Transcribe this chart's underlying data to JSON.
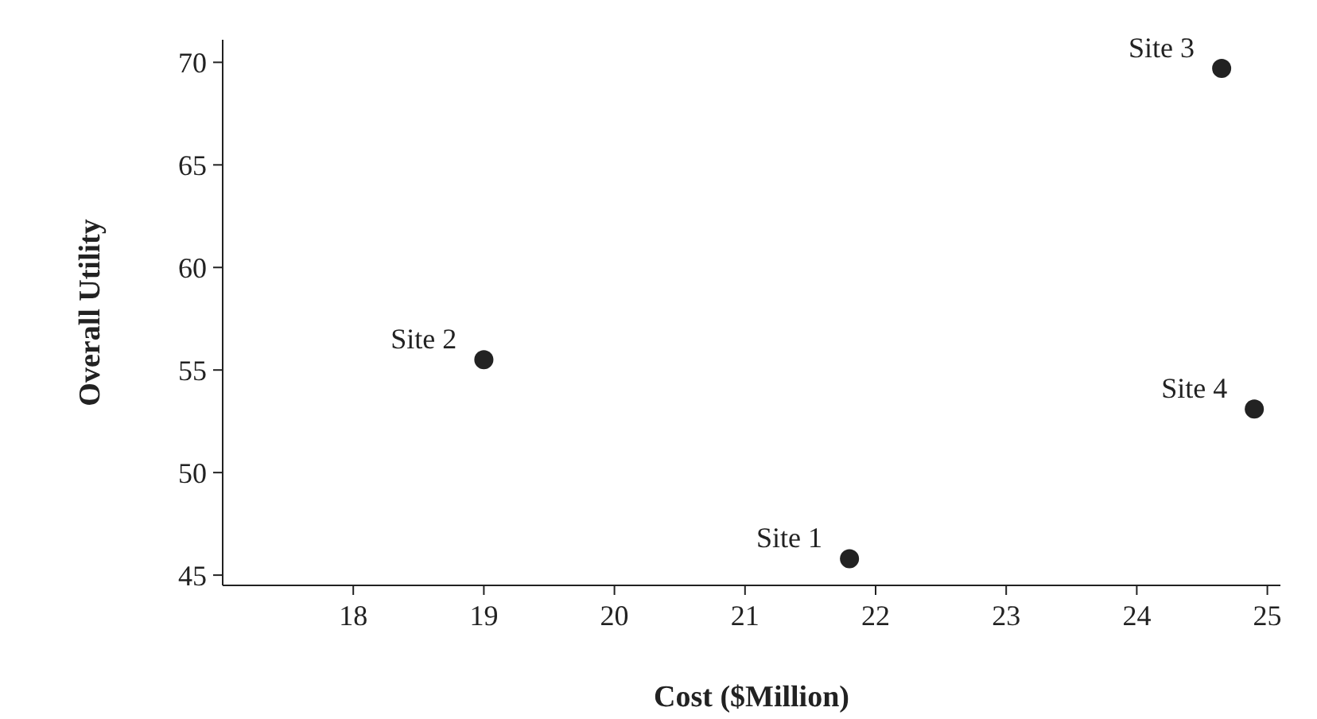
{
  "chart_data": {
    "type": "scatter",
    "xlabel": "Cost ($Million)",
    "ylabel": "Overall Utility",
    "x": [
      21.8,
      19,
      24.65,
      24.9
    ],
    "values": [
      45.8,
      55.5,
      69.7,
      53.1
    ],
    "color": "#222222",
    "marker": "circle",
    "grid": false,
    "legend": false,
    "xlim": [
      17,
      25.1
    ],
    "xticks": [
      18,
      19,
      20,
      21,
      22,
      23,
      24,
      25
    ],
    "ylim": [
      44.5,
      71.1
    ],
    "yticks": [
      45,
      50,
      55,
      60,
      65,
      70
    ],
    "annotations": [
      {
        "text": "Site 1",
        "x": 21.8,
        "y": 45.8
      },
      {
        "text": "Site 2",
        "x": 19,
        "y": 55.5
      },
      {
        "text": "Site 3",
        "x": 24.65,
        "y": 69.7
      },
      {
        "text": "Site 4",
        "x": 24.9,
        "y": 53.1
      }
    ]
  }
}
